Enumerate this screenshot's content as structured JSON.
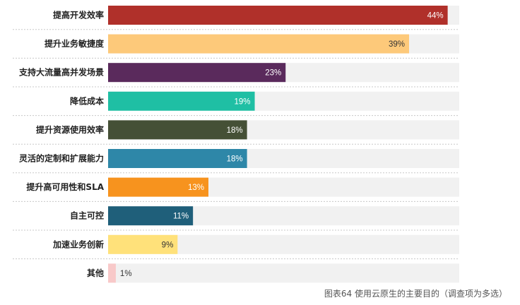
{
  "chart_data": {
    "type": "bar",
    "orientation": "horizontal",
    "categories": [
      "提高开发效率",
      "提升业务敏捷度",
      "支持大流量高并发场景",
      "降低成本",
      "提升资源使用效率",
      "灵活的定制和扩展能力",
      "提升高可用性和SLA",
      "自主可控",
      "加速业务创新",
      "其他"
    ],
    "values": [
      44,
      39,
      23,
      19,
      18,
      18,
      13,
      11,
      9,
      1
    ],
    "value_labels": [
      "44%",
      "39%",
      "23%",
      "19%",
      "18%",
      "18%",
      "13%",
      "11%",
      "9%",
      "1%"
    ],
    "colors": [
      "#b0302a",
      "#fdc97a",
      "#5a2a5c",
      "#1fbfa4",
      "#455036",
      "#2e87a8",
      "#f7931e",
      "#1f5f7a",
      "#ffe17a",
      "#f8c9c9"
    ],
    "value_label_colors": [
      "#ffffff",
      "#333333",
      "#ffffff",
      "#ffffff",
      "#ffffff",
      "#ffffff",
      "#ffffff",
      "#ffffff",
      "#333333",
      "#333333"
    ],
    "unit": "%",
    "xlim": [
      0,
      45.5
    ],
    "grid": false,
    "legend": "none",
    "caption": "图表64 使用云原生的主要目的（调查项为多选）"
  }
}
